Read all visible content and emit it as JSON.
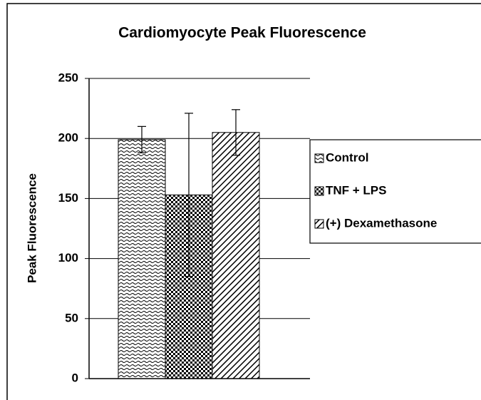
{
  "chart_data": {
    "type": "bar",
    "title": "Cardiomyocyte Peak Fluorescence",
    "y_label": "Peak Fluorescence",
    "categories": [
      null
    ],
    "series": [
      {
        "name": "Control",
        "color": "#000000",
        "pattern": "wavy",
        "values": [
          199
        ],
        "errors": [
          11
        ]
      },
      {
        "name": "TNF + LPS",
        "color": "#000000",
        "pattern": "checker",
        "values": [
          153
        ],
        "errors": [
          68
        ]
      },
      {
        "name": "(+) Dexamethasone",
        "color": "#000000",
        "pattern": "diagonal",
        "values": [
          205
        ],
        "errors": [
          19
        ]
      }
    ],
    "ylim": [
      0,
      250
    ],
    "yticks": [
      0,
      50,
      100,
      150,
      200,
      250
    ],
    "grid": true,
    "legend": "right"
  }
}
